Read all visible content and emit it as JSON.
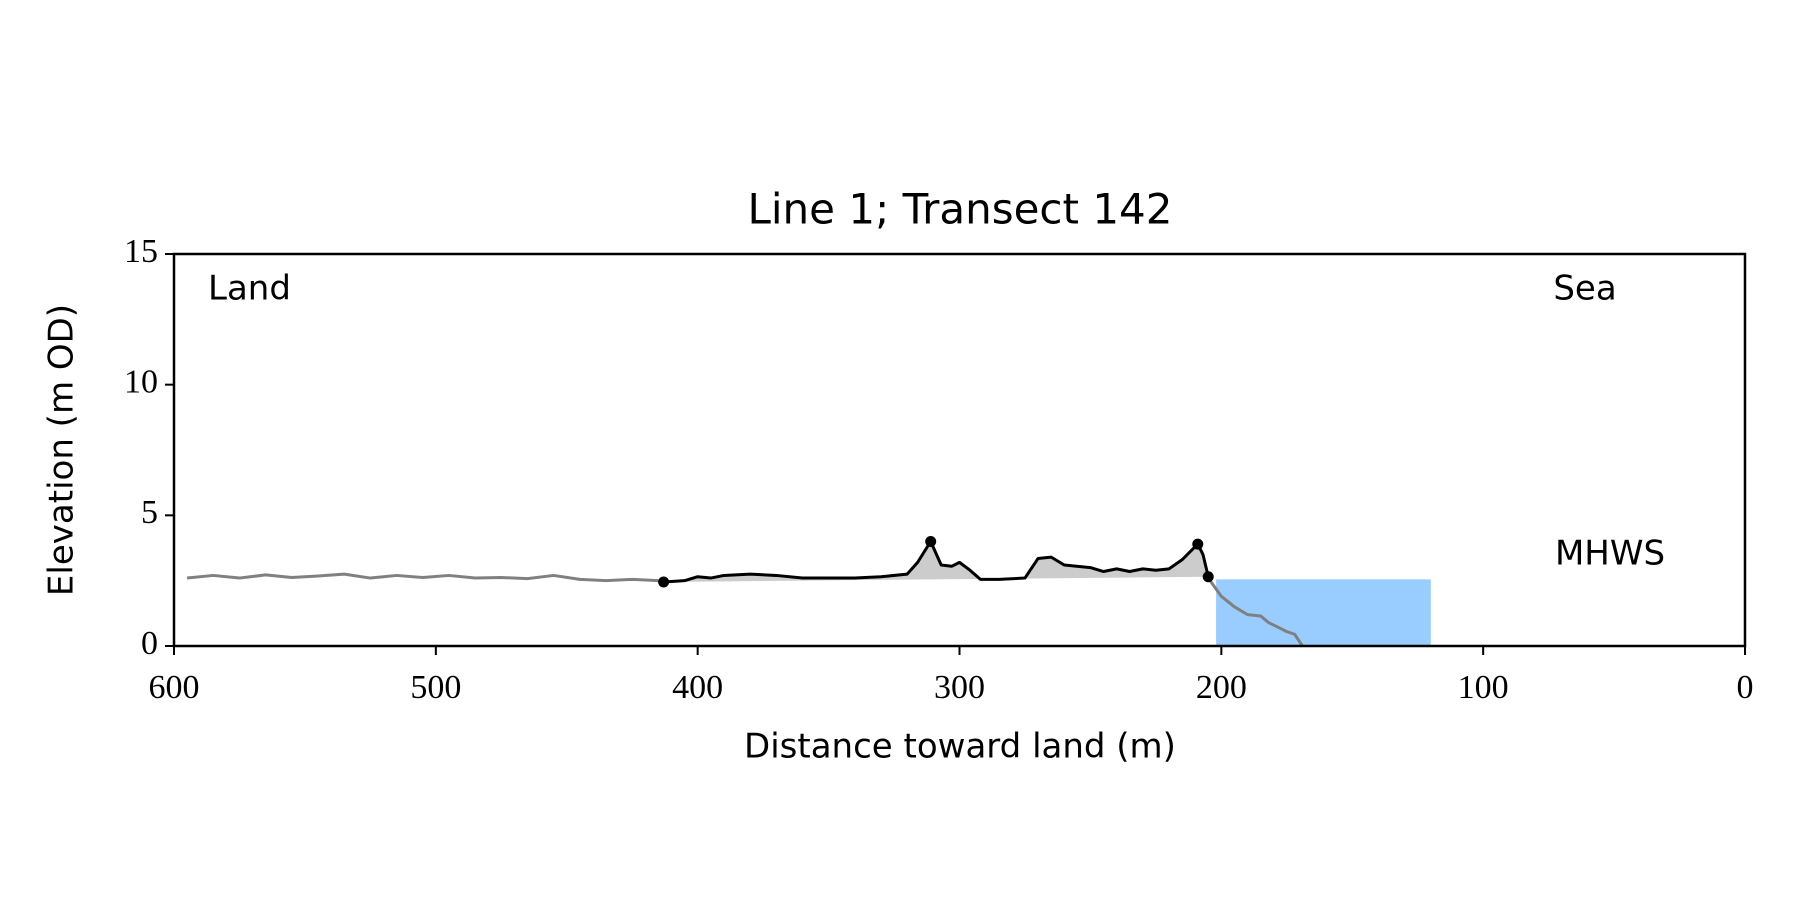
{
  "chart_data": {
    "type": "line",
    "title": "Line 1; Transect 142",
    "xlabel": "Distance toward land (m)",
    "ylabel": "Elevation (m OD)",
    "xlim": [
      600,
      0
    ],
    "ylim": [
      0,
      15
    ],
    "xticks": [
      600,
      500,
      400,
      300,
      200,
      100,
      0
    ],
    "yticks": [
      0,
      5,
      10,
      15
    ],
    "annotations": [
      "Land",
      "Sea"
    ],
    "series": [
      {
        "role": "profile",
        "color": "#808080",
        "x": [
          595,
          585,
          575,
          565,
          555,
          545,
          535,
          525,
          515,
          505,
          495,
          485,
          475,
          465,
          455,
          445,
          435,
          425,
          415,
          300,
          205,
          200,
          195,
          190,
          185,
          182,
          178,
          175,
          172,
          169
        ],
        "values": [
          2.6,
          2.7,
          2.6,
          2.72,
          2.62,
          2.68,
          2.75,
          2.6,
          2.7,
          2.62,
          2.7,
          2.6,
          2.62,
          2.58,
          2.7,
          2.55,
          2.5,
          2.55,
          2.5,
          null,
          2.6,
          1.9,
          1.5,
          1.2,
          1.15,
          0.9,
          0.7,
          0.55,
          0.45,
          0
        ]
      },
      {
        "role": "dune",
        "color": "#000000",
        "fill": "#cccccc",
        "x": [
          413,
          405,
          400,
          395,
          390,
          380,
          370,
          360,
          350,
          340,
          330,
          320,
          316,
          311,
          307,
          303,
          300,
          296,
          292,
          285,
          275,
          270,
          265,
          260,
          250,
          245,
          240,
          235,
          230,
          225,
          220,
          215,
          209,
          207,
          205
        ],
        "values": [
          2.45,
          2.5,
          2.65,
          2.6,
          2.7,
          2.75,
          2.7,
          2.6,
          2.6,
          2.6,
          2.65,
          2.75,
          3.2,
          4.0,
          3.1,
          3.05,
          3.2,
          2.9,
          2.55,
          2.55,
          2.6,
          3.35,
          3.4,
          3.1,
          3.0,
          2.85,
          2.95,
          2.85,
          2.95,
          2.9,
          2.95,
          3.3,
          3.9,
          3.5,
          2.65
        ]
      }
    ],
    "markers": {
      "color": "#000000",
      "x": [
        413,
        311,
        209,
        205
      ],
      "values": [
        2.45,
        4.0,
        3.9,
        2.65
      ]
    },
    "mhws": {
      "label": "MHWS",
      "value": 2.55,
      "x_range": [
        202,
        120
      ],
      "color": "#99ccff",
      "label_color": "#6699cc"
    }
  }
}
